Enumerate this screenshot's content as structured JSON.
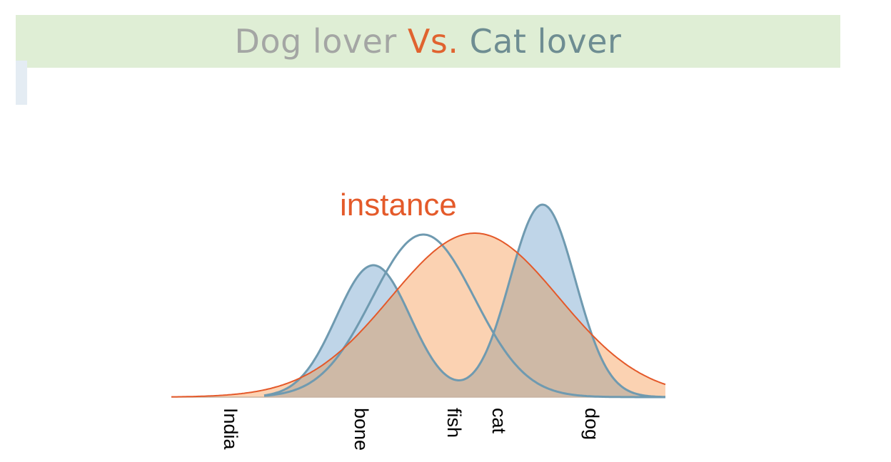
{
  "title": {
    "part1": "Dog lover",
    "part2": "Vs.",
    "part3": "Cat lover"
  },
  "diagram": {
    "annotation": "instance",
    "tick_labels": [
      "India",
      "bone",
      "fish",
      "cat",
      "dog"
    ]
  },
  "colors": {
    "banner": "#dfeed5",
    "dog_fill": "#bfd5e8",
    "dog_stroke": "#6f9ab0",
    "instance_fill": "#fbd2b2",
    "instance_stroke": "#e4592a",
    "overlap_fill": "#ceb9a6"
  }
}
